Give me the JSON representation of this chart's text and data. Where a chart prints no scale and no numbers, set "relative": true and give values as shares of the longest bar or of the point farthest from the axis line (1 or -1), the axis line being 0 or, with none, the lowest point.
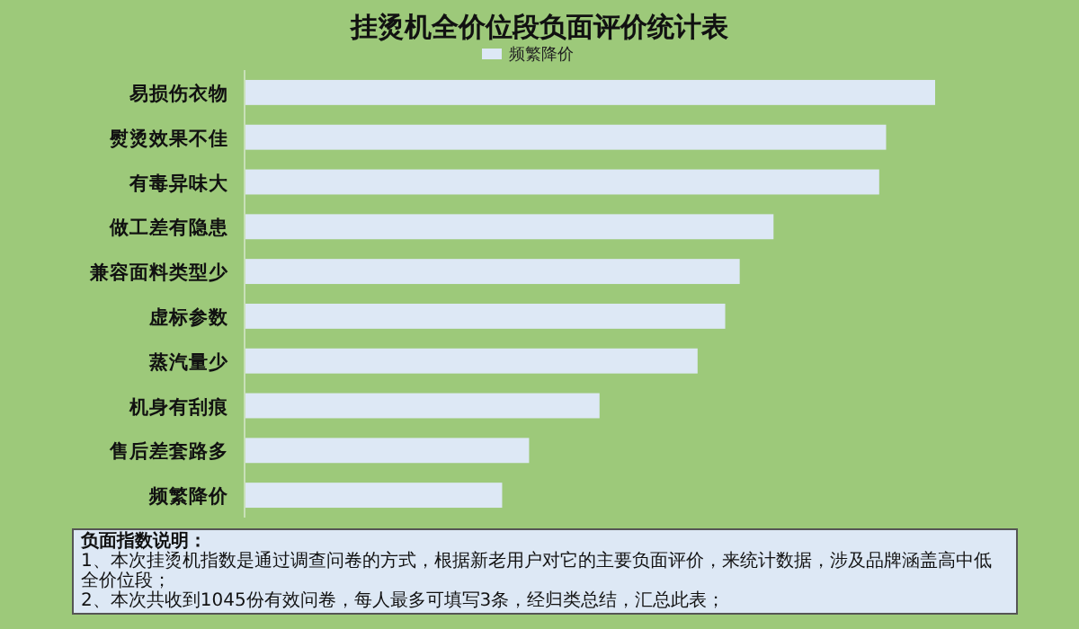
{
  "chart_data": {
    "type": "bar",
    "orientation": "horizontal",
    "relative": true,
    "title": "挂烫机全价位段负面评价统计表",
    "categories": [
      "易损伤衣物",
      "熨烫效果不佳",
      "有毒异味大",
      "做工差有隐患",
      "兼容面料类型少",
      "虚标参数",
      "蒸汽量少",
      "机身有刮痕",
      "售后差套路多",
      "频繁降价"
    ],
    "series": [
      {
        "name": "频繁降价",
        "color": "#dde8f5",
        "values": [
          1,
          0.929,
          0.919,
          0.766,
          0.717,
          0.696,
          0.656,
          0.514,
          0.412,
          0.373
        ]
      }
    ],
    "legend": "top",
    "annotations": [
      "负面指数说明：",
      "1、本次挂烫机指数是通过调查问卷的方式，根据新老用户对它的主要负面评价，来统计数据，涉及品牌涵盖高中低全价位段；",
      "2、本次共收到1045份有效问卷，每人最多可填写3条，经归类总结，汇总此表；"
    ]
  }
}
